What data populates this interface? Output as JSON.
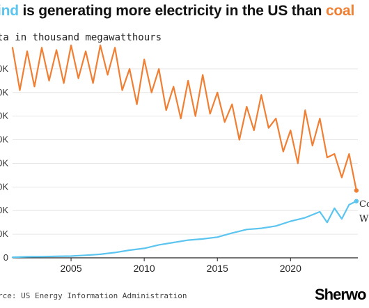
{
  "title": {
    "wind_word": "ind",
    "middle": " is generating more electricity in the US than ",
    "coal_word": "coal"
  },
  "subtitle": "ta in thousand megawatthours",
  "source": "rce: US Energy Information Administration",
  "logo": "Sherwo",
  "colors": {
    "wind": "#5bc4ef",
    "coal": "#f07f34",
    "grid": "#e6e6e6",
    "baseline": "#222222"
  },
  "chart_data": {
    "type": "line",
    "xlabel": "",
    "ylabel": "",
    "xlim": [
      2001,
      2024.6
    ],
    "ylim": [
      0,
      180000
    ],
    "x_ticks": [
      2005,
      2010,
      2015,
      2020
    ],
    "x_tick_labels": [
      "2005",
      "2010",
      "2015",
      "2020"
    ],
    "y_ticks": [
      0,
      20000,
      40000,
      60000,
      80000,
      100000,
      120000,
      140000,
      160000
    ],
    "y_tick_labels": [
      "0",
      "0K",
      "0K",
      "0K",
      "0K",
      "0K",
      "0K",
      "0K",
      "0K"
    ],
    "grid": true,
    "series": [
      {
        "name": "Co",
        "color": "#f07f34",
        "x": [
          2001.0,
          2001.5,
          2002.0,
          2002.5,
          2003.0,
          2003.5,
          2004.0,
          2004.5,
          2005.0,
          2005.5,
          2006.0,
          2006.5,
          2007.0,
          2007.5,
          2008.0,
          2008.5,
          2009.0,
          2009.5,
          2010.0,
          2010.5,
          2011.0,
          2011.5,
          2012.0,
          2012.5,
          2013.0,
          2013.5,
          2014.0,
          2014.5,
          2015.0,
          2015.5,
          2016.0,
          2016.5,
          2017.0,
          2017.5,
          2018.0,
          2018.5,
          2019.0,
          2019.5,
          2020.0,
          2020.5,
          2021.0,
          2021.5,
          2022.0,
          2022.5,
          2023.0,
          2023.5,
          2024.0,
          2024.5
        ],
        "y": [
          178000,
          142000,
          175000,
          145000,
          178000,
          150000,
          176000,
          148000,
          180000,
          152000,
          175000,
          148000,
          180000,
          155000,
          178000,
          142000,
          160000,
          130000,
          168000,
          140000,
          160000,
          125000,
          145000,
          118000,
          150000,
          120000,
          155000,
          122000,
          140000,
          115000,
          130000,
          100000,
          128000,
          108000,
          138000,
          110000,
          118000,
          90000,
          108000,
          80000,
          125000,
          95000,
          118000,
          85000,
          88000,
          68000,
          88000,
          57000
        ]
      },
      {
        "name": "W",
        "color": "#5bc4ef",
        "x": [
          2001.0,
          2002.0,
          2003.0,
          2004.0,
          2005.0,
          2006.0,
          2007.0,
          2008.0,
          2009.0,
          2010.0,
          2011.0,
          2012.0,
          2013.0,
          2014.0,
          2015.0,
          2016.0,
          2017.0,
          2018.0,
          2019.0,
          2020.0,
          2021.0,
          2022.0,
          2022.5,
          2023.0,
          2023.5,
          2024.0,
          2024.5
        ],
        "y": [
          500,
          900,
          1000,
          1300,
          1500,
          2200,
          3000,
          4500,
          6500,
          8000,
          11000,
          13000,
          15000,
          16000,
          17500,
          21000,
          24000,
          25000,
          27000,
          31000,
          34000,
          39000,
          30000,
          42000,
          33000,
          45000,
          48000
        ]
      }
    ],
    "end_labels": [
      "W",
      "Co"
    ]
  }
}
